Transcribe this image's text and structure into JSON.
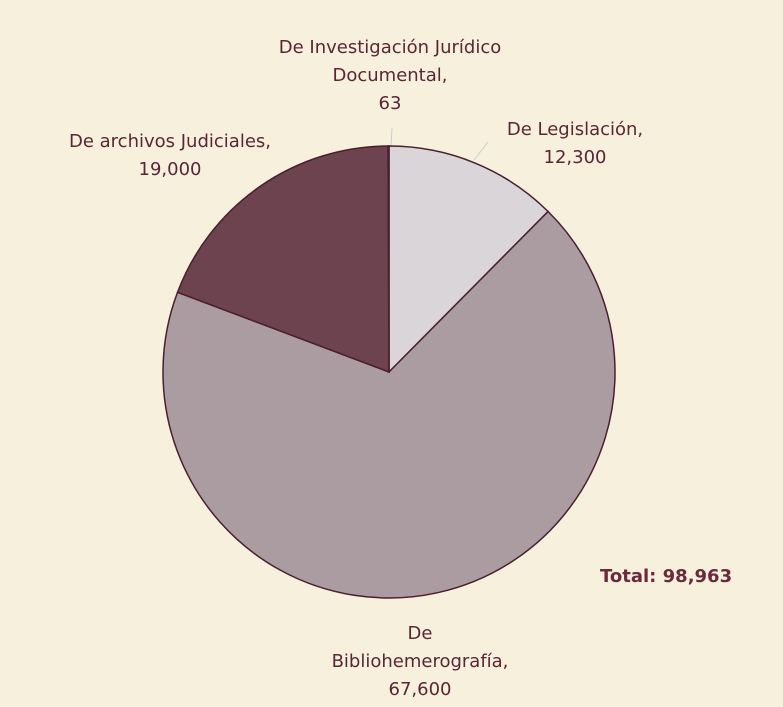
{
  "chart_data": {
    "type": "pie",
    "categories": [
      "De Legislación,",
      "De Bibliohemerografía,",
      "De archivos Judiciales,",
      "De Investigación Jurídico Documental,"
    ],
    "values": [
      12300,
      67600,
      19000,
      63
    ],
    "value_labels": [
      "12,300",
      "67,600",
      "19,000",
      "63"
    ],
    "colors": [
      "#d9d5d9",
      "#ab9ca2",
      "#6d4350",
      "#ffffff"
    ],
    "annotation": "Total: 98,963"
  }
}
